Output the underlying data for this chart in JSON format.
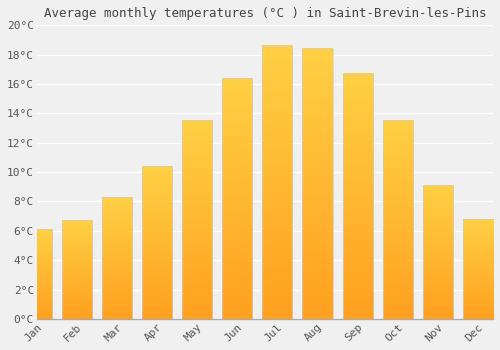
{
  "title": "Average monthly temperatures (°C ) in Saint-Brevin-les-Pins",
  "months": [
    "Jan",
    "Feb",
    "Mar",
    "Apr",
    "May",
    "Jun",
    "Jul",
    "Aug",
    "Sep",
    "Oct",
    "Nov",
    "Dec"
  ],
  "values": [
    6.1,
    6.7,
    8.3,
    10.4,
    13.5,
    16.4,
    18.6,
    18.4,
    16.7,
    13.5,
    9.1,
    6.8
  ],
  "bar_color_top": "#FFD044",
  "bar_color_bottom": "#FFA020",
  "bar_edge_color": "#DDDDDD",
  "ylim": [
    0,
    20
  ],
  "yticks": [
    0,
    2,
    4,
    6,
    8,
    10,
    12,
    14,
    16,
    18,
    20
  ],
  "ytick_labels": [
    "0°C",
    "2°C",
    "4°C",
    "6°C",
    "8°C",
    "10°C",
    "12°C",
    "14°C",
    "16°C",
    "18°C",
    "20°C"
  ],
  "background_color": "#f0f0f0",
  "grid_color": "#ffffff",
  "title_fontsize": 9,
  "tick_fontsize": 8,
  "bar_width": 0.75
}
